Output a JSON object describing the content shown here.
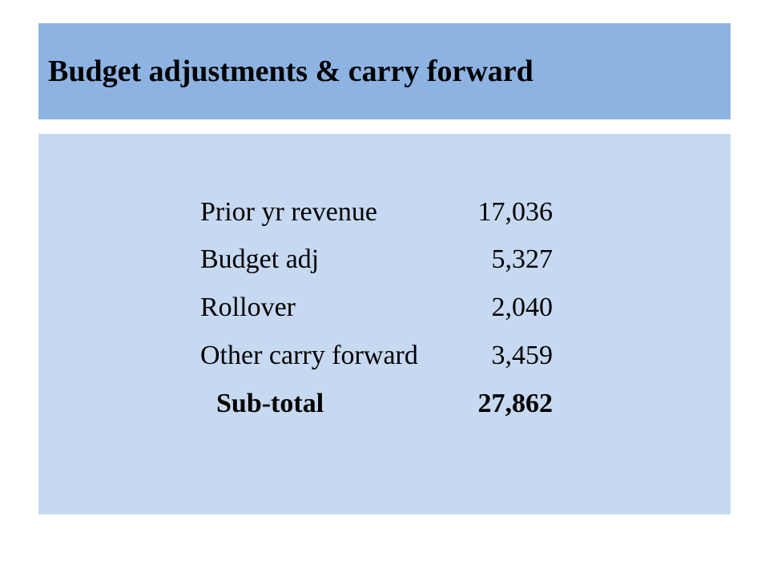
{
  "title": "Budget adjustments & carry forward",
  "rows": [
    {
      "label": "Prior yr revenue",
      "value": "17,036"
    },
    {
      "label": "Budget adj",
      "value": "5,327"
    },
    {
      "label": "Rollover",
      "value": "2,040"
    },
    {
      "label": "Other carry forward",
      "value": "3,459"
    }
  ],
  "total": {
    "label": "Sub-total",
    "value": "27,862"
  },
  "colors": {
    "title_bar": "#8db3e2",
    "content_panel": "#c6d9f1"
  }
}
